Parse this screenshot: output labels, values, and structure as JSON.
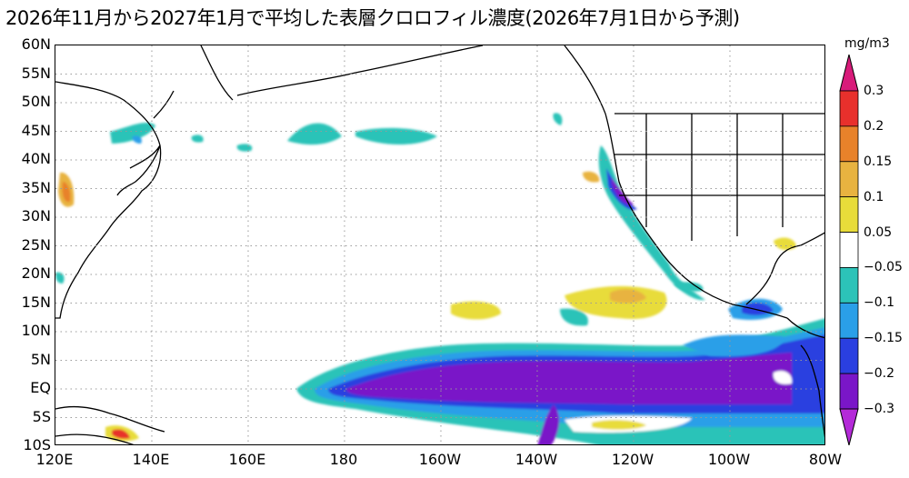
{
  "title": "2026年11月から2027年1月で平均した表層クロロフィル濃度(2026年7月1日から予測)",
  "map": {
    "lat_labels": [
      "60N",
      "55N",
      "50N",
      "45N",
      "40N",
      "35N",
      "30N",
      "25N",
      "20N",
      "15N",
      "10N",
      "5N",
      "EQ",
      "5S",
      "10S"
    ],
    "lon_labels": [
      "120E",
      "140E",
      "160E",
      "180",
      "160W",
      "140W",
      "120W",
      "100W",
      "80W"
    ],
    "lat_range": [
      -10,
      60
    ],
    "lon_range": [
      120,
      280
    ],
    "grid": "dotted"
  },
  "colorbar": {
    "unit": "mg/m3",
    "labels": [
      "0.3",
      "0.2",
      "0.15",
      "0.1",
      "0.05",
      "−0.05",
      "−0.1",
      "−0.15",
      "−0.2",
      "−0.3"
    ],
    "colors": [
      "#d81b7a",
      "#e8302c",
      "#e8822a",
      "#e8b340",
      "#e8dc3a",
      "#ffffff",
      "#2cc3b8",
      "#2a9fe8",
      "#2a3fe0",
      "#7a16c8",
      "#b42ad8"
    ]
  }
}
